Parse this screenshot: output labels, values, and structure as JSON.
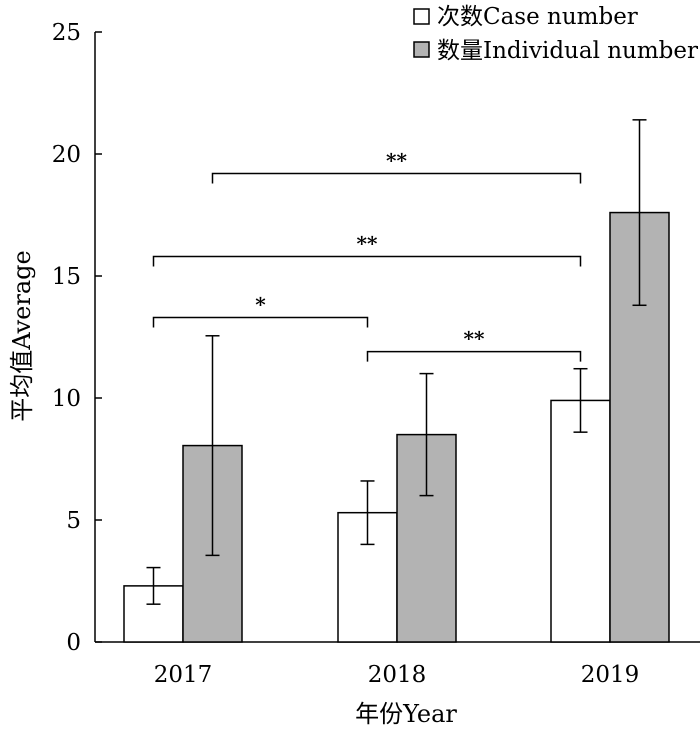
{
  "chart_data": {
    "type": "bar",
    "xlabel": "年份Year",
    "ylabel": "平均值Average",
    "ylim": [
      0,
      25
    ],
    "yticks": [
      0,
      5,
      10,
      15,
      20,
      25
    ],
    "categories": [
      "2017",
      "2018",
      "2019"
    ],
    "series": [
      {
        "name": "次数Case number",
        "values": [
          2.3,
          5.3,
          9.9
        ],
        "errors": [
          0.75,
          1.3,
          1.3
        ],
        "color": "#ffffff"
      },
      {
        "name": "数量Individual number",
        "values": [
          8.05,
          8.5,
          17.6
        ],
        "errors": [
          4.5,
          2.5,
          3.8
        ],
        "color": "#b3b3b3"
      }
    ],
    "significance": [
      {
        "label": "**",
        "from": {
          "category": 0,
          "series": 1
        },
        "to": {
          "category": 2,
          "series": 0
        },
        "level": 19.2
      },
      {
        "label": "**",
        "from": {
          "category": 0,
          "series": 0
        },
        "to": {
          "category": 2,
          "series": 0
        },
        "level": 15.8
      },
      {
        "label": "*",
        "from": {
          "category": 0,
          "series": 0
        },
        "to": {
          "category": 1,
          "series": 0
        },
        "level": 13.3
      },
      {
        "label": "**",
        "from": {
          "category": 1,
          "series": 0
        },
        "to": {
          "category": 2,
          "series": 0
        },
        "level": 11.9
      }
    ],
    "legend_position": "top-right",
    "grid": false
  }
}
